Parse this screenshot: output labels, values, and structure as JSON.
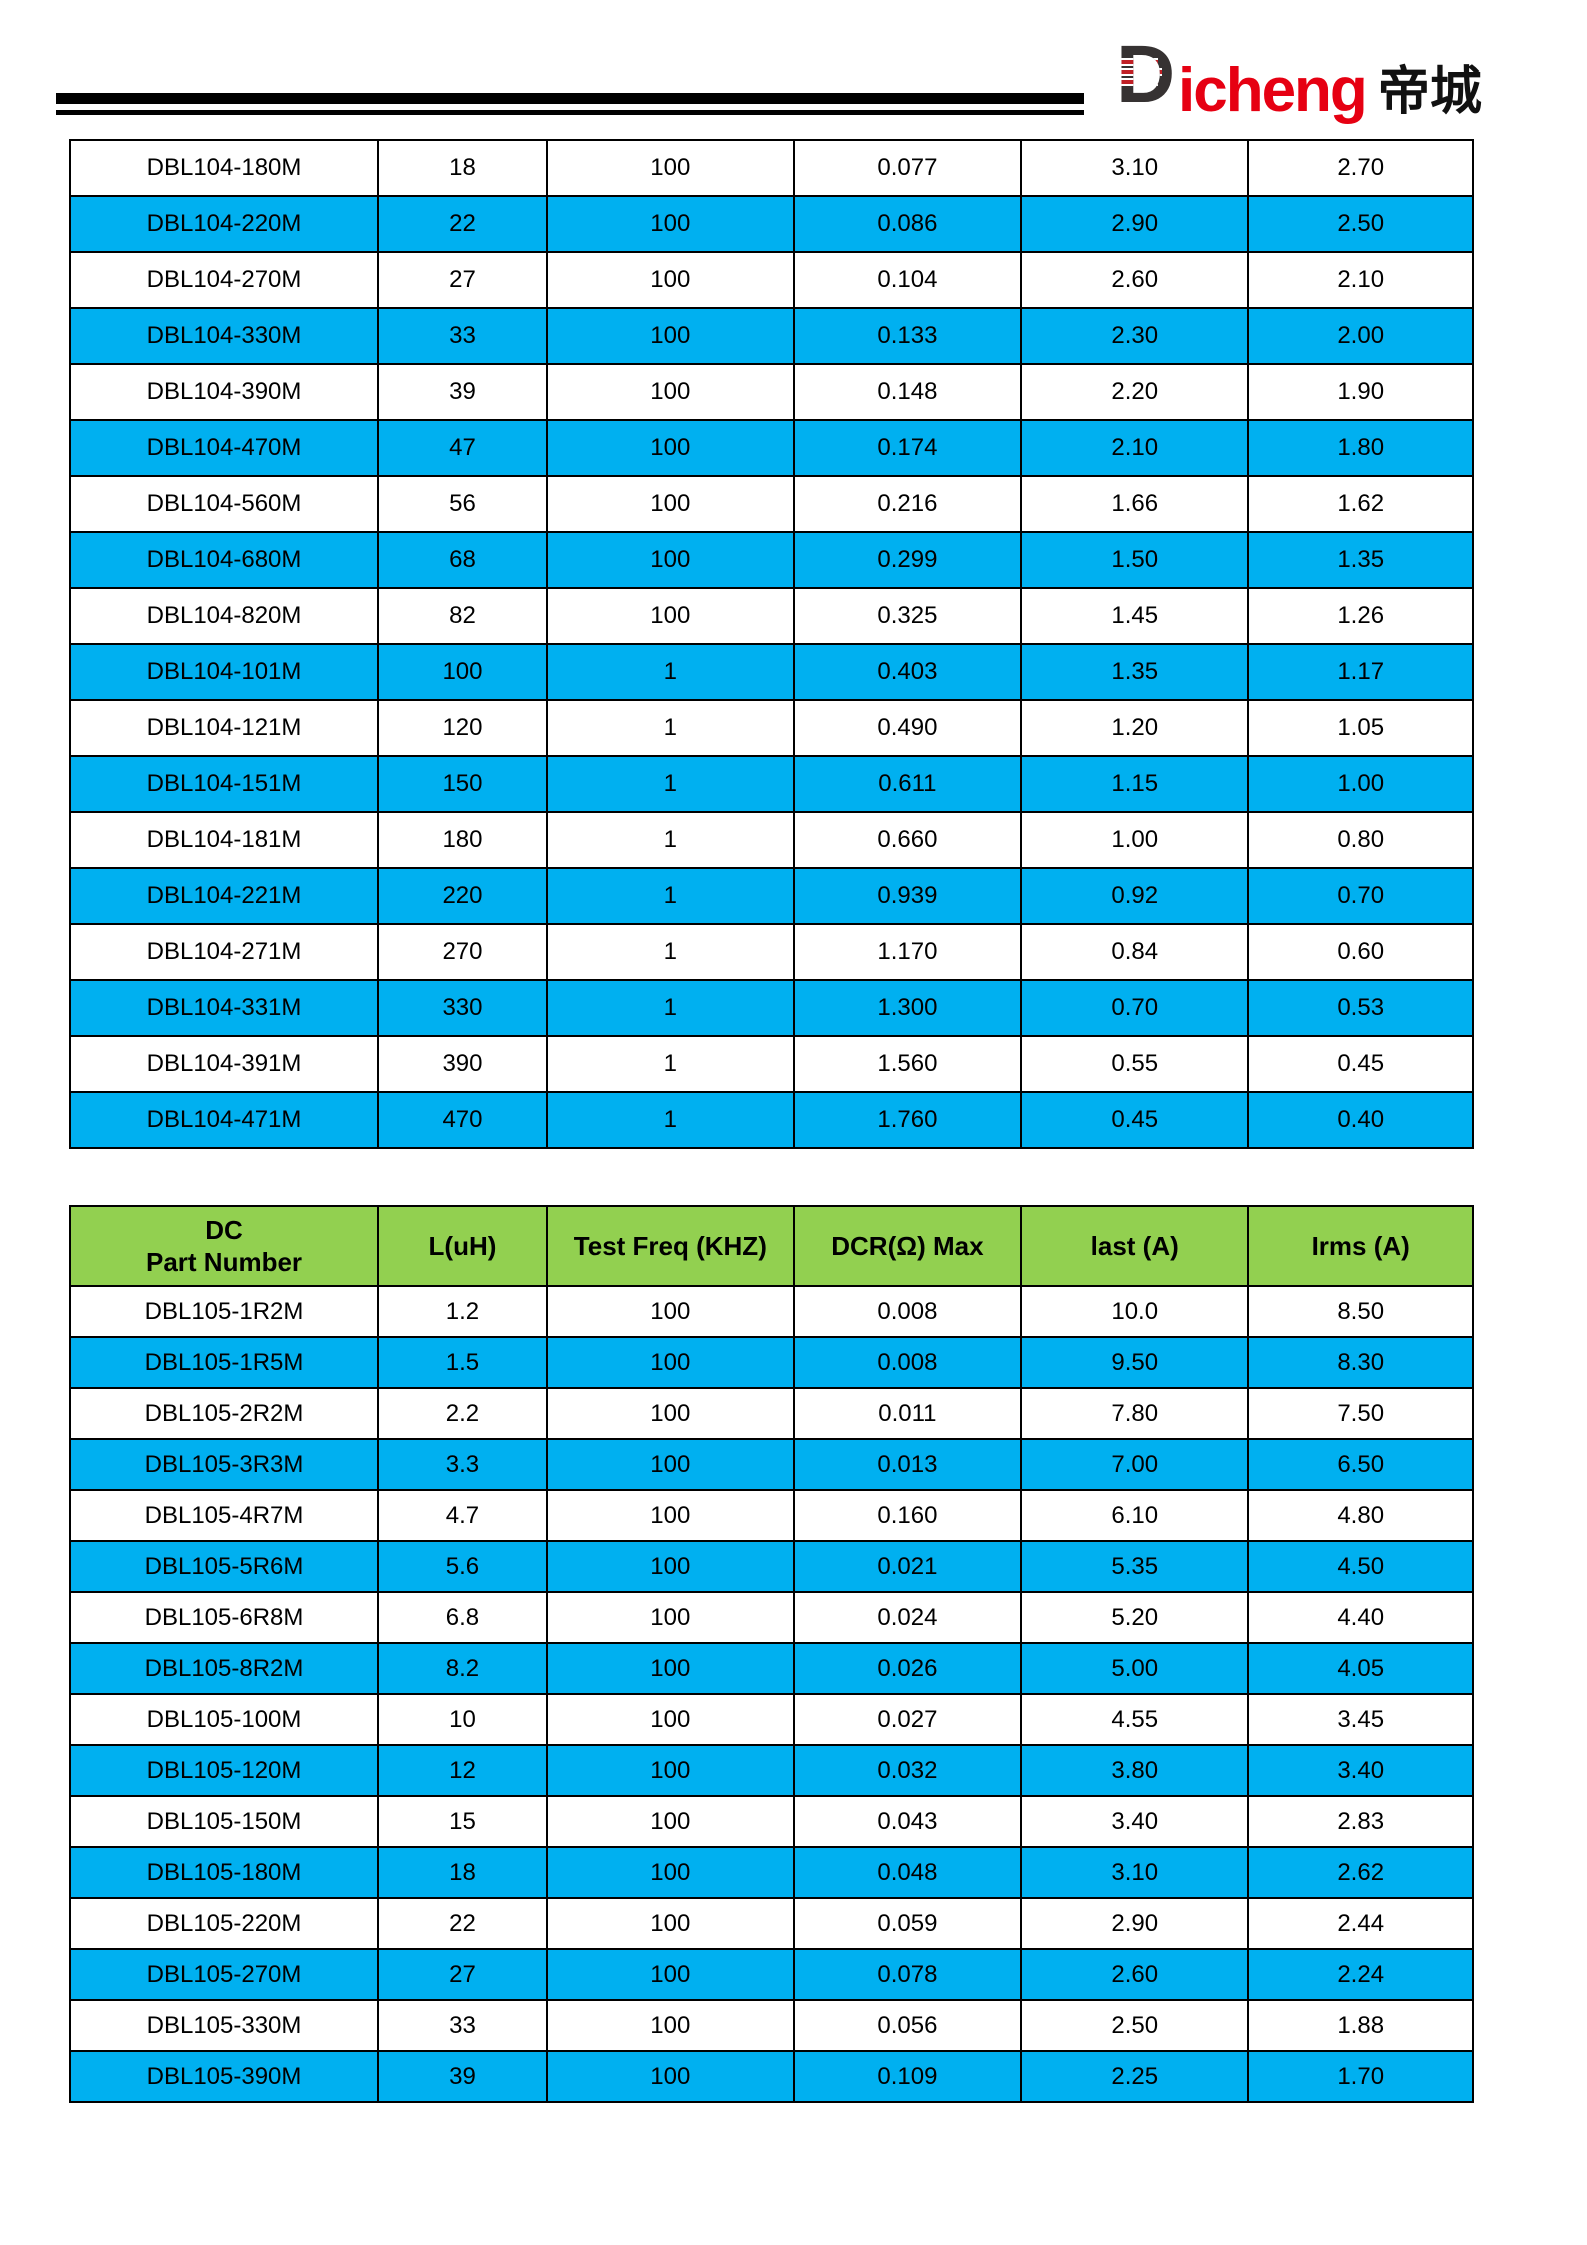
{
  "logo": {
    "d_letter": "D",
    "wordmark_rest": "icheng",
    "cjk": "帝城"
  },
  "colors": {
    "row_blue": "#00b0f0",
    "header_green": "#92d050",
    "logo_red": "#e60012",
    "logo_dark": "#363232",
    "border_black": "#000000"
  },
  "tables": [
    {
      "id": "dbl104",
      "columns": [],
      "rows": [
        [
          "DBL104-180M",
          "18",
          "100",
          "0.077",
          "3.10",
          "2.70"
        ],
        [
          "DBL104-220M",
          "22",
          "100",
          "0.086",
          "2.90",
          "2.50"
        ],
        [
          "DBL104-270M",
          "27",
          "100",
          "0.104",
          "2.60",
          "2.10"
        ],
        [
          "DBL104-330M",
          "33",
          "100",
          "0.133",
          "2.30",
          "2.00"
        ],
        [
          "DBL104-390M",
          "39",
          "100",
          "0.148",
          "2.20",
          "1.90"
        ],
        [
          "DBL104-470M",
          "47",
          "100",
          "0.174",
          "2.10",
          "1.80"
        ],
        [
          "DBL104-560M",
          "56",
          "100",
          "0.216",
          "1.66",
          "1.62"
        ],
        [
          "DBL104-680M",
          "68",
          "100",
          "0.299",
          "1.50",
          "1.35"
        ],
        [
          "DBL104-820M",
          "82",
          "100",
          "0.325",
          "1.45",
          "1.26"
        ],
        [
          "DBL104-101M",
          "100",
          "1",
          "0.403",
          "1.35",
          "1.17"
        ],
        [
          "DBL104-121M",
          "120",
          "1",
          "0.490",
          "1.20",
          "1.05"
        ],
        [
          "DBL104-151M",
          "150",
          "1",
          "0.611",
          "1.15",
          "1.00"
        ],
        [
          "DBL104-181M",
          "180",
          "1",
          "0.660",
          "1.00",
          "0.80"
        ],
        [
          "DBL104-221M",
          "220",
          "1",
          "0.939",
          "0.92",
          "0.70"
        ],
        [
          "DBL104-271M",
          "270",
          "1",
          "1.170",
          "0.84",
          "0.60"
        ],
        [
          "DBL104-331M",
          "330",
          "1",
          "1.300",
          "0.70",
          "0.53"
        ],
        [
          "DBL104-391M",
          "390",
          "1",
          "1.560",
          "0.55",
          "0.45"
        ],
        [
          "DBL104-471M",
          "470",
          "1",
          "1.760",
          "0.45",
          "0.40"
        ]
      ]
    },
    {
      "id": "dbl105",
      "columns": [
        "DC\nPart Number",
        "L(uH)",
        "Test Freq (KHZ)",
        "DCR(Ω) Max",
        "last (A)",
        "Irms (A)"
      ],
      "rows": [
        [
          "DBL105-1R2M",
          "1.2",
          "100",
          "0.008",
          "10.0",
          "8.50"
        ],
        [
          "DBL105-1R5M",
          "1.5",
          "100",
          "0.008",
          "9.50",
          "8.30"
        ],
        [
          "DBL105-2R2M",
          "2.2",
          "100",
          "0.011",
          "7.80",
          "7.50"
        ],
        [
          "DBL105-3R3M",
          "3.3",
          "100",
          "0.013",
          "7.00",
          "6.50"
        ],
        [
          "DBL105-4R7M",
          "4.7",
          "100",
          "0.160",
          "6.10",
          "4.80"
        ],
        [
          "DBL105-5R6M",
          "5.6",
          "100",
          "0.021",
          "5.35",
          "4.50"
        ],
        [
          "DBL105-6R8M",
          "6.8",
          "100",
          "0.024",
          "5.20",
          "4.40"
        ],
        [
          "DBL105-8R2M",
          "8.2",
          "100",
          "0.026",
          "5.00",
          "4.05"
        ],
        [
          "DBL105-100M",
          "10",
          "100",
          "0.027",
          "4.55",
          "3.45"
        ],
        [
          "DBL105-120M",
          "12",
          "100",
          "0.032",
          "3.80",
          "3.40"
        ],
        [
          "DBL105-150M",
          "15",
          "100",
          "0.043",
          "3.40",
          "2.83"
        ],
        [
          "DBL105-180M",
          "18",
          "100",
          "0.048",
          "3.10",
          "2.62"
        ],
        [
          "DBL105-220M",
          "22",
          "100",
          "0.059",
          "2.90",
          "2.44"
        ],
        [
          "DBL105-270M",
          "27",
          "100",
          "0.078",
          "2.60",
          "2.24"
        ],
        [
          "DBL105-330M",
          "33",
          "100",
          "0.056",
          "2.50",
          "1.88"
        ],
        [
          "DBL105-390M",
          "39",
          "100",
          "0.109",
          "2.25",
          "1.70"
        ]
      ]
    }
  ]
}
